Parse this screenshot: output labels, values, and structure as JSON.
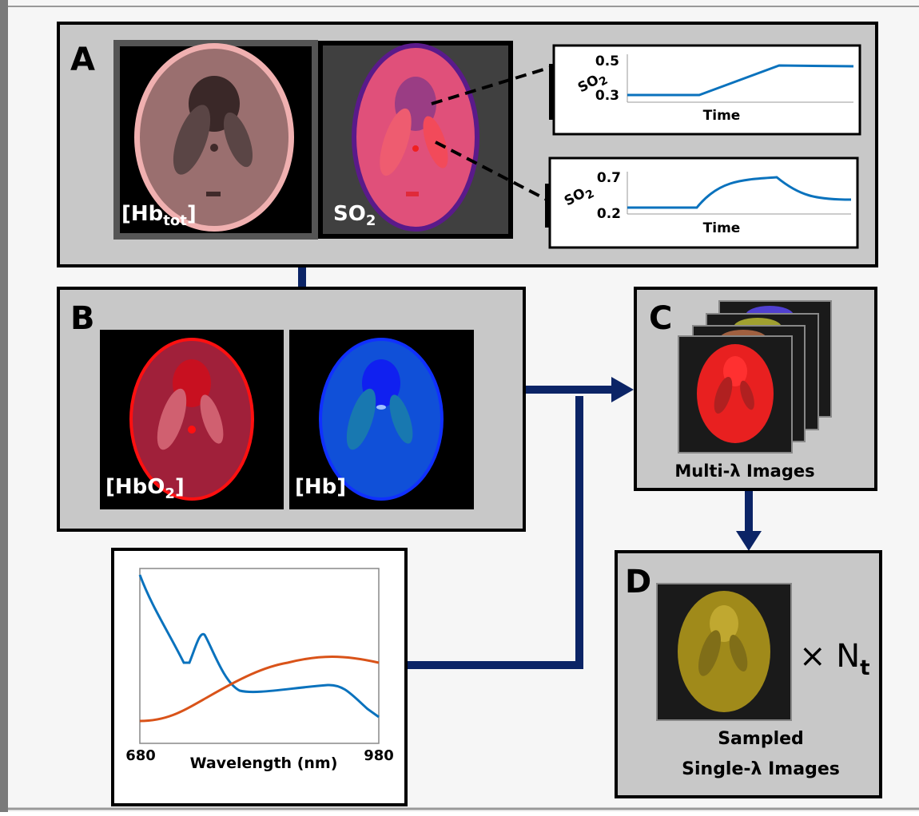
{
  "panels": {
    "A": {
      "label": "A",
      "images": [
        {
          "text": "[Hb",
          "sub": "tot",
          "after": "]"
        },
        {
          "text": "SO",
          "sub": "2"
        }
      ],
      "plots": [
        {
          "ylabel": {
            "text": "SO",
            "sub": "2"
          },
          "yticks": [
            "0.5",
            "0.3"
          ],
          "xlabel": "Time"
        },
        {
          "ylabel": {
            "text": "SO",
            "sub": "2"
          },
          "yticks": [
            "0.7",
            "0.2"
          ],
          "xlabel": "Time"
        }
      ]
    },
    "B": {
      "label": "B",
      "images": [
        {
          "text": "[HbO",
          "sub": "2",
          "after": "]"
        },
        {
          "text": "[Hb]"
        }
      ]
    },
    "C": {
      "label": "C",
      "caption": "Multi-λ Images"
    },
    "D": {
      "label": "D",
      "multiplier": {
        "text": "× N",
        "sub": "t"
      },
      "caption": [
        "Sampled",
        "Single-λ Images"
      ]
    }
  },
  "spectrum": {
    "xticks": [
      "680",
      "980"
    ],
    "xlabel": "Wavelength (nm)"
  }
}
